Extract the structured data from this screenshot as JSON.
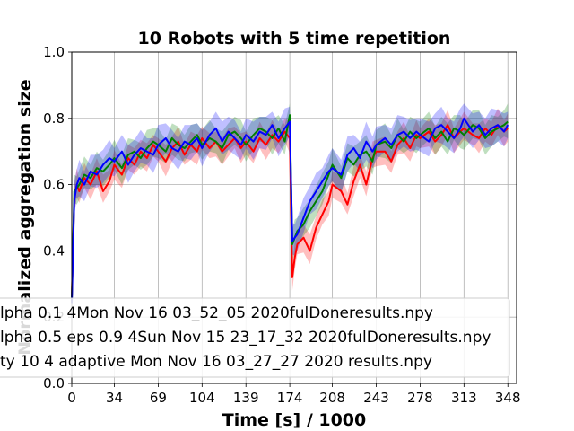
{
  "chart_data": {
    "type": "line",
    "title": "10 Robots with 5 time repetition",
    "xlabel": "Time [s] / 1000",
    "ylabel": "Normalized aggregation size",
    "xlim": [
      0,
      355
    ],
    "ylim": [
      0.0,
      1.0
    ],
    "x_ticks": [
      "0",
      "34",
      "69",
      "104",
      "139",
      "174",
      "208",
      "243",
      "278",
      "313",
      "348"
    ],
    "y_ticks": [
      "0.0",
      "0.2",
      "0.4",
      "0.6",
      "0.8",
      "1.0"
    ],
    "grid": true,
    "legend_position": "lower-left",
    "x": [
      0,
      2,
      4,
      6,
      10,
      15,
      20,
      25,
      30,
      34,
      40,
      45,
      50,
      55,
      60,
      65,
      69,
      75,
      80,
      85,
      90,
      95,
      100,
      104,
      110,
      115,
      120,
      125,
      130,
      135,
      139,
      145,
      150,
      155,
      160,
      165,
      170,
      174,
      176,
      178,
      180,
      185,
      190,
      195,
      200,
      205,
      208,
      215,
      220,
      225,
      230,
      235,
      240,
      243,
      250,
      255,
      260,
      265,
      270,
      275,
      278,
      285,
      290,
      295,
      300,
      305,
      310,
      313,
      320,
      325,
      330,
      335,
      340,
      345,
      348
    ],
    "series": [
      {
        "name": "lpha 0.1 4Mon Nov 16 03_52_05 2020fulDoneresults.npy",
        "color": "#ff0000",
        "values": [
          0.26,
          0.56,
          0.6,
          0.58,
          0.62,
          0.6,
          0.64,
          0.58,
          0.61,
          0.66,
          0.63,
          0.68,
          0.66,
          0.7,
          0.68,
          0.72,
          0.7,
          0.67,
          0.71,
          0.73,
          0.69,
          0.72,
          0.7,
          0.74,
          0.71,
          0.73,
          0.7,
          0.72,
          0.74,
          0.71,
          0.73,
          0.7,
          0.74,
          0.72,
          0.75,
          0.73,
          0.76,
          0.74,
          0.32,
          0.38,
          0.42,
          0.44,
          0.4,
          0.47,
          0.51,
          0.55,
          0.6,
          0.58,
          0.54,
          0.61,
          0.66,
          0.6,
          0.68,
          0.7,
          0.7,
          0.67,
          0.72,
          0.74,
          0.71,
          0.75,
          0.74,
          0.76,
          0.73,
          0.75,
          0.78,
          0.74,
          0.76,
          0.77,
          0.75,
          0.74,
          0.77,
          0.75,
          0.78,
          0.76,
          0.77
        ]
      },
      {
        "name": "lpha 0.5 eps 0.9 4Sun Nov 15 23_17_32 2020fulDoneresults.npy",
        "color": "#008000",
        "values": [
          0.25,
          0.58,
          0.59,
          0.6,
          0.63,
          0.62,
          0.65,
          0.64,
          0.66,
          0.68,
          0.65,
          0.69,
          0.7,
          0.68,
          0.71,
          0.73,
          0.72,
          0.7,
          0.74,
          0.72,
          0.71,
          0.73,
          0.75,
          0.72,
          0.74,
          0.73,
          0.71,
          0.75,
          0.76,
          0.74,
          0.72,
          0.75,
          0.77,
          0.76,
          0.74,
          0.77,
          0.73,
          0.81,
          0.42,
          0.44,
          0.46,
          0.48,
          0.52,
          0.55,
          0.58,
          0.63,
          0.66,
          0.62,
          0.68,
          0.66,
          0.69,
          0.7,
          0.67,
          0.72,
          0.73,
          0.71,
          0.75,
          0.73,
          0.76,
          0.74,
          0.75,
          0.77,
          0.74,
          0.76,
          0.73,
          0.77,
          0.76,
          0.75,
          0.78,
          0.77,
          0.74,
          0.76,
          0.77,
          0.78,
          0.79
        ]
      },
      {
        "name": "ty 10 4 adaptive Mon Nov 16 03_27_27 2020  results.npy",
        "color": "#0000ff",
        "values": [
          0.24,
          0.55,
          0.6,
          0.62,
          0.6,
          0.64,
          0.63,
          0.66,
          0.68,
          0.67,
          0.7,
          0.66,
          0.69,
          0.71,
          0.7,
          0.69,
          0.72,
          0.74,
          0.71,
          0.7,
          0.73,
          0.72,
          0.74,
          0.71,
          0.75,
          0.77,
          0.73,
          0.76,
          0.74,
          0.72,
          0.75,
          0.73,
          0.76,
          0.75,
          0.78,
          0.74,
          0.77,
          0.79,
          0.43,
          0.44,
          0.45,
          0.5,
          0.55,
          0.58,
          0.61,
          0.64,
          0.65,
          0.63,
          0.69,
          0.71,
          0.68,
          0.73,
          0.7,
          0.72,
          0.74,
          0.72,
          0.75,
          0.76,
          0.74,
          0.76,
          0.75,
          0.73,
          0.77,
          0.78,
          0.76,
          0.74,
          0.77,
          0.8,
          0.76,
          0.78,
          0.75,
          0.77,
          0.78,
          0.76,
          0.78
        ]
      }
    ]
  }
}
